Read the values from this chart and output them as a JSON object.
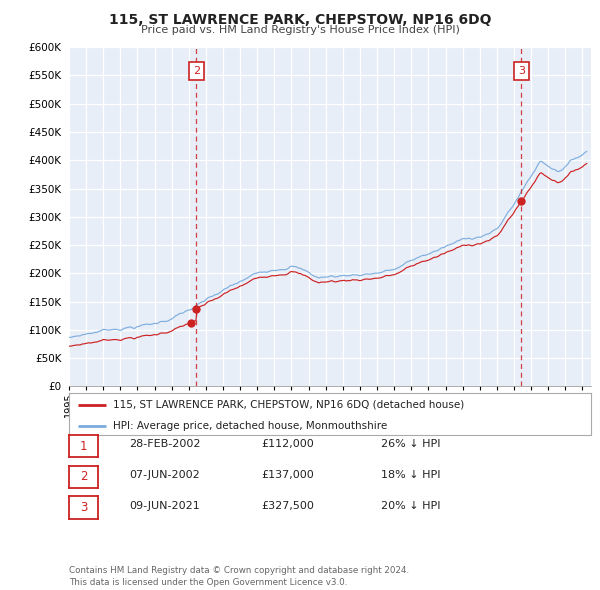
{
  "title": "115, ST LAWRENCE PARK, CHEPSTOW, NP16 6DQ",
  "subtitle": "Price paid vs. HM Land Registry's House Price Index (HPI)",
  "background_color": "#e8eef8",
  "plot_bg_color": "#e8eef8",
  "hpi_color": "#7aabdc",
  "price_color": "#cc2222",
  "ylim": [
    0,
    600000
  ],
  "xlim_start": 1995.0,
  "xlim_end": 2025.5,
  "yticks": [
    0,
    50000,
    100000,
    150000,
    200000,
    250000,
    300000,
    350000,
    400000,
    450000,
    500000,
    550000,
    600000
  ],
  "ytick_labels": [
    "£0",
    "£50K",
    "£100K",
    "£150K",
    "£200K",
    "£250K",
    "£300K",
    "£350K",
    "£400K",
    "£450K",
    "£500K",
    "£550K",
    "£600K"
  ],
  "xticks": [
    1995,
    1996,
    1997,
    1998,
    1999,
    2000,
    2001,
    2002,
    2003,
    2004,
    2005,
    2006,
    2007,
    2008,
    2009,
    2010,
    2011,
    2012,
    2013,
    2014,
    2015,
    2016,
    2017,
    2018,
    2019,
    2020,
    2021,
    2022,
    2023,
    2024,
    2025
  ],
  "sale1_t": 2002.1507,
  "sale1_p": 112000,
  "sale2_t": 2002.4384,
  "sale2_p": 137000,
  "sale3_t": 2021.4384,
  "sale3_p": 327500,
  "vline_color": "#cc2222",
  "transaction_rows": [
    {
      "num": "1",
      "date": "28-FEB-2002",
      "price": "£112,000",
      "hpi": "26% ↓ HPI"
    },
    {
      "num": "2",
      "date": "07-JUN-2002",
      "price": "£137,000",
      "hpi": "18% ↓ HPI"
    },
    {
      "num": "3",
      "date": "09-JUN-2021",
      "price": "£327,500",
      "hpi": "20% ↓ HPI"
    }
  ],
  "legend_entry1": "115, ST LAWRENCE PARK, CHEPSTOW, NP16 6DQ (detached house)",
  "legend_entry2": "HPI: Average price, detached house, Monmouthshire",
  "footer": "Contains HM Land Registry data © Crown copyright and database right 2024.\nThis data is licensed under the Open Government Licence v3.0."
}
